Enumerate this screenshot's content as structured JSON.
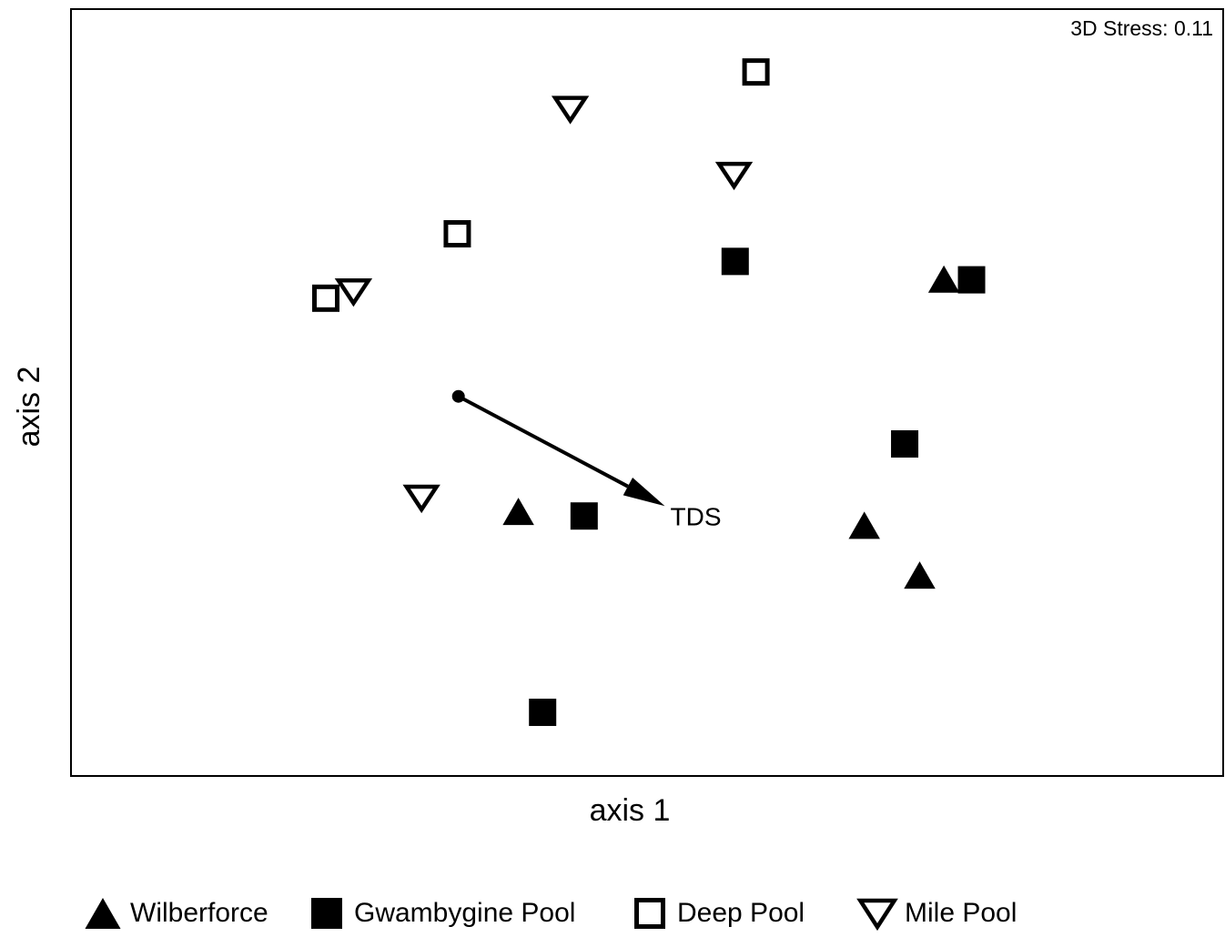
{
  "chart_data": {
    "type": "scatter",
    "xlabel": "axis 1",
    "ylabel": "axis 2",
    "annotation": "3D Stress: 0.11",
    "xlim": [
      0,
      100
    ],
    "ylim": [
      0,
      100
    ],
    "series": [
      {
        "name": "Wilberforce",
        "color": "#000000",
        "marker": "triangle",
        "x": [
          75.7,
          38.8,
          68.8,
          73.6
        ],
        "y": [
          64.8,
          34.5,
          32.7,
          26.2
        ]
      },
      {
        "name": "Gwambygine Pool",
        "color": "#000000",
        "marker": "square",
        "x": [
          57.6,
          78.1,
          72.3,
          44.5,
          40.9
        ],
        "y": [
          67.1,
          64.7,
          43.3,
          33.9,
          8.3
        ]
      },
      {
        "name": "Deep Pool",
        "color": "#000000",
        "marker": "square-open",
        "x": [
          59.4,
          33.5,
          22.1
        ],
        "y": [
          91.8,
          70.7,
          62.3
        ]
      },
      {
        "name": "Mile Pool",
        "color": "#000000",
        "marker": "triangle-down-open",
        "x": [
          43.3,
          57.5,
          24.5,
          30.4
        ],
        "y": [
          87.0,
          78.4,
          63.2,
          36.3
        ]
      }
    ],
    "vectors": [
      {
        "label": "TDS",
        "start": [
          33.6,
          49.5
        ],
        "end": [
          51.5,
          35.2
        ]
      }
    ]
  }
}
